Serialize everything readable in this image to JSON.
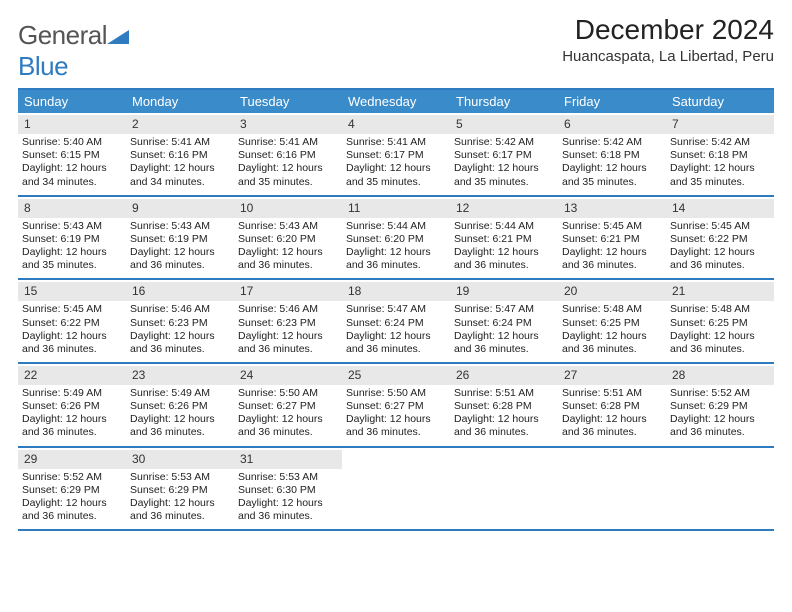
{
  "logo": {
    "text1": "General",
    "text2": "Blue"
  },
  "title": "December 2024",
  "location": "Huancaspata, La Libertad, Peru",
  "colors": {
    "header_bg": "#3a8bc9",
    "border": "#2f7bbf",
    "daynum_bg": "#e8e8e8",
    "text": "#222222"
  },
  "day_names": [
    "Sunday",
    "Monday",
    "Tuesday",
    "Wednesday",
    "Thursday",
    "Friday",
    "Saturday"
  ],
  "weeks": [
    [
      {
        "d": "1",
        "sr": "5:40 AM",
        "ss": "6:15 PM",
        "dl": "12 hours and 34 minutes."
      },
      {
        "d": "2",
        "sr": "5:41 AM",
        "ss": "6:16 PM",
        "dl": "12 hours and 34 minutes."
      },
      {
        "d": "3",
        "sr": "5:41 AM",
        "ss": "6:16 PM",
        "dl": "12 hours and 35 minutes."
      },
      {
        "d": "4",
        "sr": "5:41 AM",
        "ss": "6:17 PM",
        "dl": "12 hours and 35 minutes."
      },
      {
        "d": "5",
        "sr": "5:42 AM",
        "ss": "6:17 PM",
        "dl": "12 hours and 35 minutes."
      },
      {
        "d": "6",
        "sr": "5:42 AM",
        "ss": "6:18 PM",
        "dl": "12 hours and 35 minutes."
      },
      {
        "d": "7",
        "sr": "5:42 AM",
        "ss": "6:18 PM",
        "dl": "12 hours and 35 minutes."
      }
    ],
    [
      {
        "d": "8",
        "sr": "5:43 AM",
        "ss": "6:19 PM",
        "dl": "12 hours and 35 minutes."
      },
      {
        "d": "9",
        "sr": "5:43 AM",
        "ss": "6:19 PM",
        "dl": "12 hours and 36 minutes."
      },
      {
        "d": "10",
        "sr": "5:43 AM",
        "ss": "6:20 PM",
        "dl": "12 hours and 36 minutes."
      },
      {
        "d": "11",
        "sr": "5:44 AM",
        "ss": "6:20 PM",
        "dl": "12 hours and 36 minutes."
      },
      {
        "d": "12",
        "sr": "5:44 AM",
        "ss": "6:21 PM",
        "dl": "12 hours and 36 minutes."
      },
      {
        "d": "13",
        "sr": "5:45 AM",
        "ss": "6:21 PM",
        "dl": "12 hours and 36 minutes."
      },
      {
        "d": "14",
        "sr": "5:45 AM",
        "ss": "6:22 PM",
        "dl": "12 hours and 36 minutes."
      }
    ],
    [
      {
        "d": "15",
        "sr": "5:45 AM",
        "ss": "6:22 PM",
        "dl": "12 hours and 36 minutes."
      },
      {
        "d": "16",
        "sr": "5:46 AM",
        "ss": "6:23 PM",
        "dl": "12 hours and 36 minutes."
      },
      {
        "d": "17",
        "sr": "5:46 AM",
        "ss": "6:23 PM",
        "dl": "12 hours and 36 minutes."
      },
      {
        "d": "18",
        "sr": "5:47 AM",
        "ss": "6:24 PM",
        "dl": "12 hours and 36 minutes."
      },
      {
        "d": "19",
        "sr": "5:47 AM",
        "ss": "6:24 PM",
        "dl": "12 hours and 36 minutes."
      },
      {
        "d": "20",
        "sr": "5:48 AM",
        "ss": "6:25 PM",
        "dl": "12 hours and 36 minutes."
      },
      {
        "d": "21",
        "sr": "5:48 AM",
        "ss": "6:25 PM",
        "dl": "12 hours and 36 minutes."
      }
    ],
    [
      {
        "d": "22",
        "sr": "5:49 AM",
        "ss": "6:26 PM",
        "dl": "12 hours and 36 minutes."
      },
      {
        "d": "23",
        "sr": "5:49 AM",
        "ss": "6:26 PM",
        "dl": "12 hours and 36 minutes."
      },
      {
        "d": "24",
        "sr": "5:50 AM",
        "ss": "6:27 PM",
        "dl": "12 hours and 36 minutes."
      },
      {
        "d": "25",
        "sr": "5:50 AM",
        "ss": "6:27 PM",
        "dl": "12 hours and 36 minutes."
      },
      {
        "d": "26",
        "sr": "5:51 AM",
        "ss": "6:28 PM",
        "dl": "12 hours and 36 minutes."
      },
      {
        "d": "27",
        "sr": "5:51 AM",
        "ss": "6:28 PM",
        "dl": "12 hours and 36 minutes."
      },
      {
        "d": "28",
        "sr": "5:52 AM",
        "ss": "6:29 PM",
        "dl": "12 hours and 36 minutes."
      }
    ],
    [
      {
        "d": "29",
        "sr": "5:52 AM",
        "ss": "6:29 PM",
        "dl": "12 hours and 36 minutes."
      },
      {
        "d": "30",
        "sr": "5:53 AM",
        "ss": "6:29 PM",
        "dl": "12 hours and 36 minutes."
      },
      {
        "d": "31",
        "sr": "5:53 AM",
        "ss": "6:30 PM",
        "dl": "12 hours and 36 minutes."
      },
      null,
      null,
      null,
      null
    ]
  ],
  "labels": {
    "sunrise": "Sunrise:",
    "sunset": "Sunset:",
    "daylight": "Daylight:"
  }
}
